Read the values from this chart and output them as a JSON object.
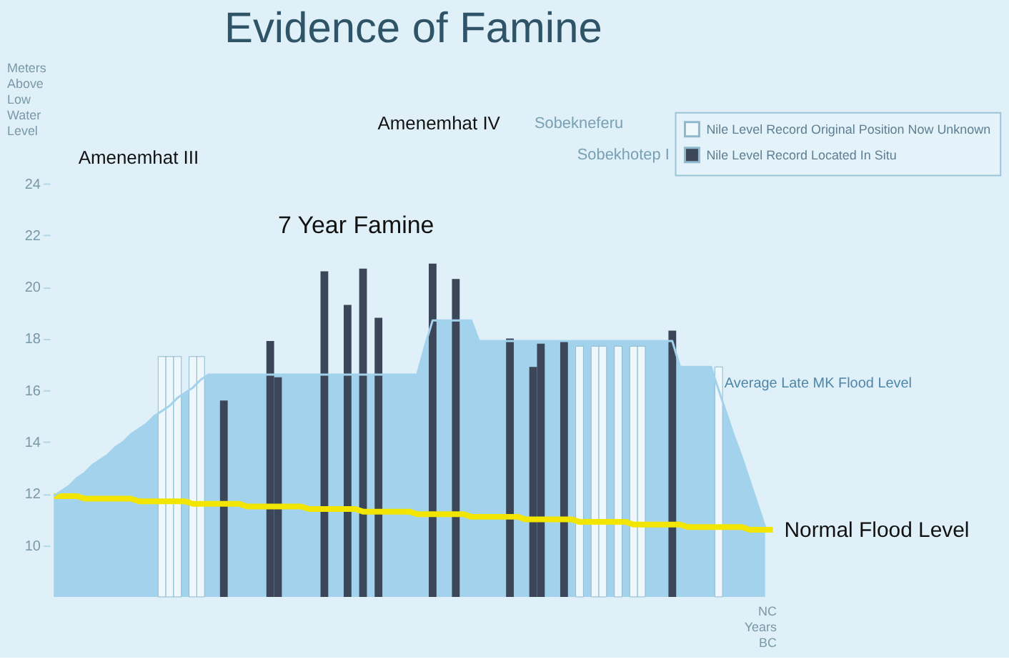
{
  "chart_data": {
    "type": "bar",
    "title": "Evidence of Famine",
    "ylabel": "Meters Above Low Water Level",
    "xlabel": "NC Years BC",
    "annotations": [
      "Amenemhat III",
      "Amenemhat IV",
      "Sobekneferu",
      "Sobekhotep I",
      "7 Year Famine"
    ],
    "categories": [
      null,
      null,
      null,
      null,
      null,
      null,
      null,
      null,
      null,
      null,
      null,
      null,
      null,
      null,
      null,
      null,
      null,
      null,
      null,
      null,
      null,
      null,
      null,
      null,
      null,
      null,
      null,
      null,
      null,
      null,
      null,
      null,
      null,
      null,
      null,
      null,
      null,
      null,
      null,
      null,
      null,
      null,
      null,
      null,
      null,
      null,
      null,
      null,
      null,
      null,
      null,
      null,
      null,
      null,
      null,
      null,
      null,
      null,
      null,
      null,
      null,
      null,
      null,
      null,
      null,
      null,
      null,
      null,
      null,
      null,
      null,
      null,
      null,
      null,
      null,
      null,
      null,
      null,
      null,
      null,
      null,
      null,
      null,
      null,
      null,
      null,
      null,
      null,
      null,
      null,
      null,
      null,
      null,
      null
    ],
    "series": [
      {
        "name": "Average Late MK Flood Level",
        "type": "area",
        "color": "#a3d3ec",
        "values": [
          11.9,
          12.1,
          12.3,
          12.6,
          12.8,
          13.1,
          13.3,
          13.5,
          13.8,
          14.0,
          14.3,
          14.5,
          14.7,
          15.0,
          15.2,
          15.4,
          15.7,
          15.9,
          16.1,
          16.4,
          16.6,
          16.6,
          16.6,
          16.6,
          16.6,
          16.6,
          16.6,
          16.6,
          16.6,
          16.6,
          16.6,
          16.6,
          16.6,
          16.6,
          16.6,
          16.6,
          16.6,
          16.6,
          16.6,
          16.6,
          16.6,
          16.6,
          16.6,
          16.6,
          16.6,
          16.6,
          16.6,
          16.6,
          17.7,
          18.7,
          18.7,
          18.7,
          18.7,
          18.7,
          18.7,
          17.9,
          17.9,
          17.9,
          17.9,
          17.9,
          17.9,
          17.9,
          17.9,
          17.9,
          17.9,
          17.9,
          17.9,
          17.9,
          17.9,
          17.9,
          17.9,
          17.9,
          17.9,
          17.9,
          17.9,
          17.9,
          17.9,
          17.9,
          17.9,
          17.9,
          17.9,
          16.9,
          16.9,
          16.9,
          16.9,
          16.9,
          16.0,
          15.1,
          14.2,
          13.4,
          12.5,
          11.6,
          10.7,
          null
        ]
      },
      {
        "name": "Nile Level Record Original Position Now Unknown",
        "color": "#eef7fb",
        "values": [
          null,
          null,
          null,
          null,
          null,
          null,
          null,
          null,
          null,
          null,
          null,
          null,
          null,
          null,
          17.3,
          17.3,
          17.3,
          null,
          17.3,
          17.3,
          null,
          null,
          null,
          null,
          null,
          null,
          null,
          null,
          null,
          null,
          null,
          null,
          null,
          null,
          null,
          null,
          null,
          null,
          null,
          null,
          null,
          null,
          null,
          null,
          null,
          null,
          null,
          null,
          null,
          null,
          null,
          null,
          null,
          null,
          null,
          null,
          null,
          null,
          null,
          null,
          null,
          null,
          null,
          null,
          null,
          null,
          null,
          null,
          17.7,
          null,
          17.7,
          17.7,
          null,
          17.7,
          null,
          17.7,
          17.7,
          null,
          null,
          null,
          null,
          null,
          null,
          null,
          null,
          null,
          16.9,
          null,
          null,
          null,
          null,
          null,
          null,
          null
        ]
      },
      {
        "name": "Nile Level Record Located In Situ",
        "color": "#3c4659",
        "values": [
          null,
          null,
          null,
          null,
          null,
          null,
          null,
          null,
          null,
          null,
          null,
          null,
          null,
          null,
          null,
          null,
          null,
          null,
          null,
          null,
          null,
          null,
          15.6,
          null,
          null,
          null,
          null,
          null,
          17.9,
          16.5,
          null,
          null,
          null,
          null,
          null,
          20.6,
          null,
          null,
          19.3,
          null,
          20.7,
          null,
          18.8,
          null,
          null,
          null,
          null,
          null,
          null,
          20.9,
          null,
          null,
          20.3,
          null,
          null,
          null,
          null,
          null,
          null,
          18.0,
          null,
          null,
          16.9,
          17.8,
          null,
          null,
          17.9,
          null,
          null,
          null,
          null,
          null,
          null,
          null,
          null,
          null,
          null,
          null,
          null,
          null,
          18.3,
          null,
          null,
          null,
          null,
          null,
          null,
          null,
          null,
          null,
          null,
          null,
          null,
          null
        ]
      },
      {
        "name": "Normal Flood Level",
        "type": "line",
        "color": "#f2e600",
        "values": [
          11.9,
          11.9,
          11.9,
          11.9,
          11.8,
          11.8,
          11.8,
          11.8,
          11.8,
          11.8,
          11.8,
          11.7,
          11.7,
          11.7,
          11.7,
          11.7,
          11.7,
          11.7,
          11.6,
          11.6,
          11.6,
          11.6,
          11.6,
          11.6,
          11.6,
          11.5,
          11.5,
          11.5,
          11.5,
          11.5,
          11.5,
          11.5,
          11.5,
          11.4,
          11.4,
          11.4,
          11.4,
          11.4,
          11.4,
          11.4,
          11.3,
          11.3,
          11.3,
          11.3,
          11.3,
          11.3,
          11.3,
          11.2,
          11.2,
          11.2,
          11.2,
          11.2,
          11.2,
          11.2,
          11.1,
          11.1,
          11.1,
          11.1,
          11.1,
          11.1,
          11.1,
          11.0,
          11.0,
          11.0,
          11.0,
          11.0,
          11.0,
          11.0,
          10.9,
          10.9,
          10.9,
          10.9,
          10.9,
          10.9,
          10.9,
          10.8,
          10.8,
          10.8,
          10.8,
          10.8,
          10.8,
          10.8,
          10.7,
          10.7,
          10.7,
          10.7,
          10.7,
          10.7,
          10.7,
          10.7,
          10.6,
          10.6,
          10.6,
          10.6
        ]
      }
    ],
    "ylim": [
      8,
      24
    ],
    "yticks": [
      10,
      12,
      14,
      16,
      18,
      20,
      22,
      24
    ],
    "tick_labels": "y",
    "legend": "top right",
    "grid": false
  }
}
